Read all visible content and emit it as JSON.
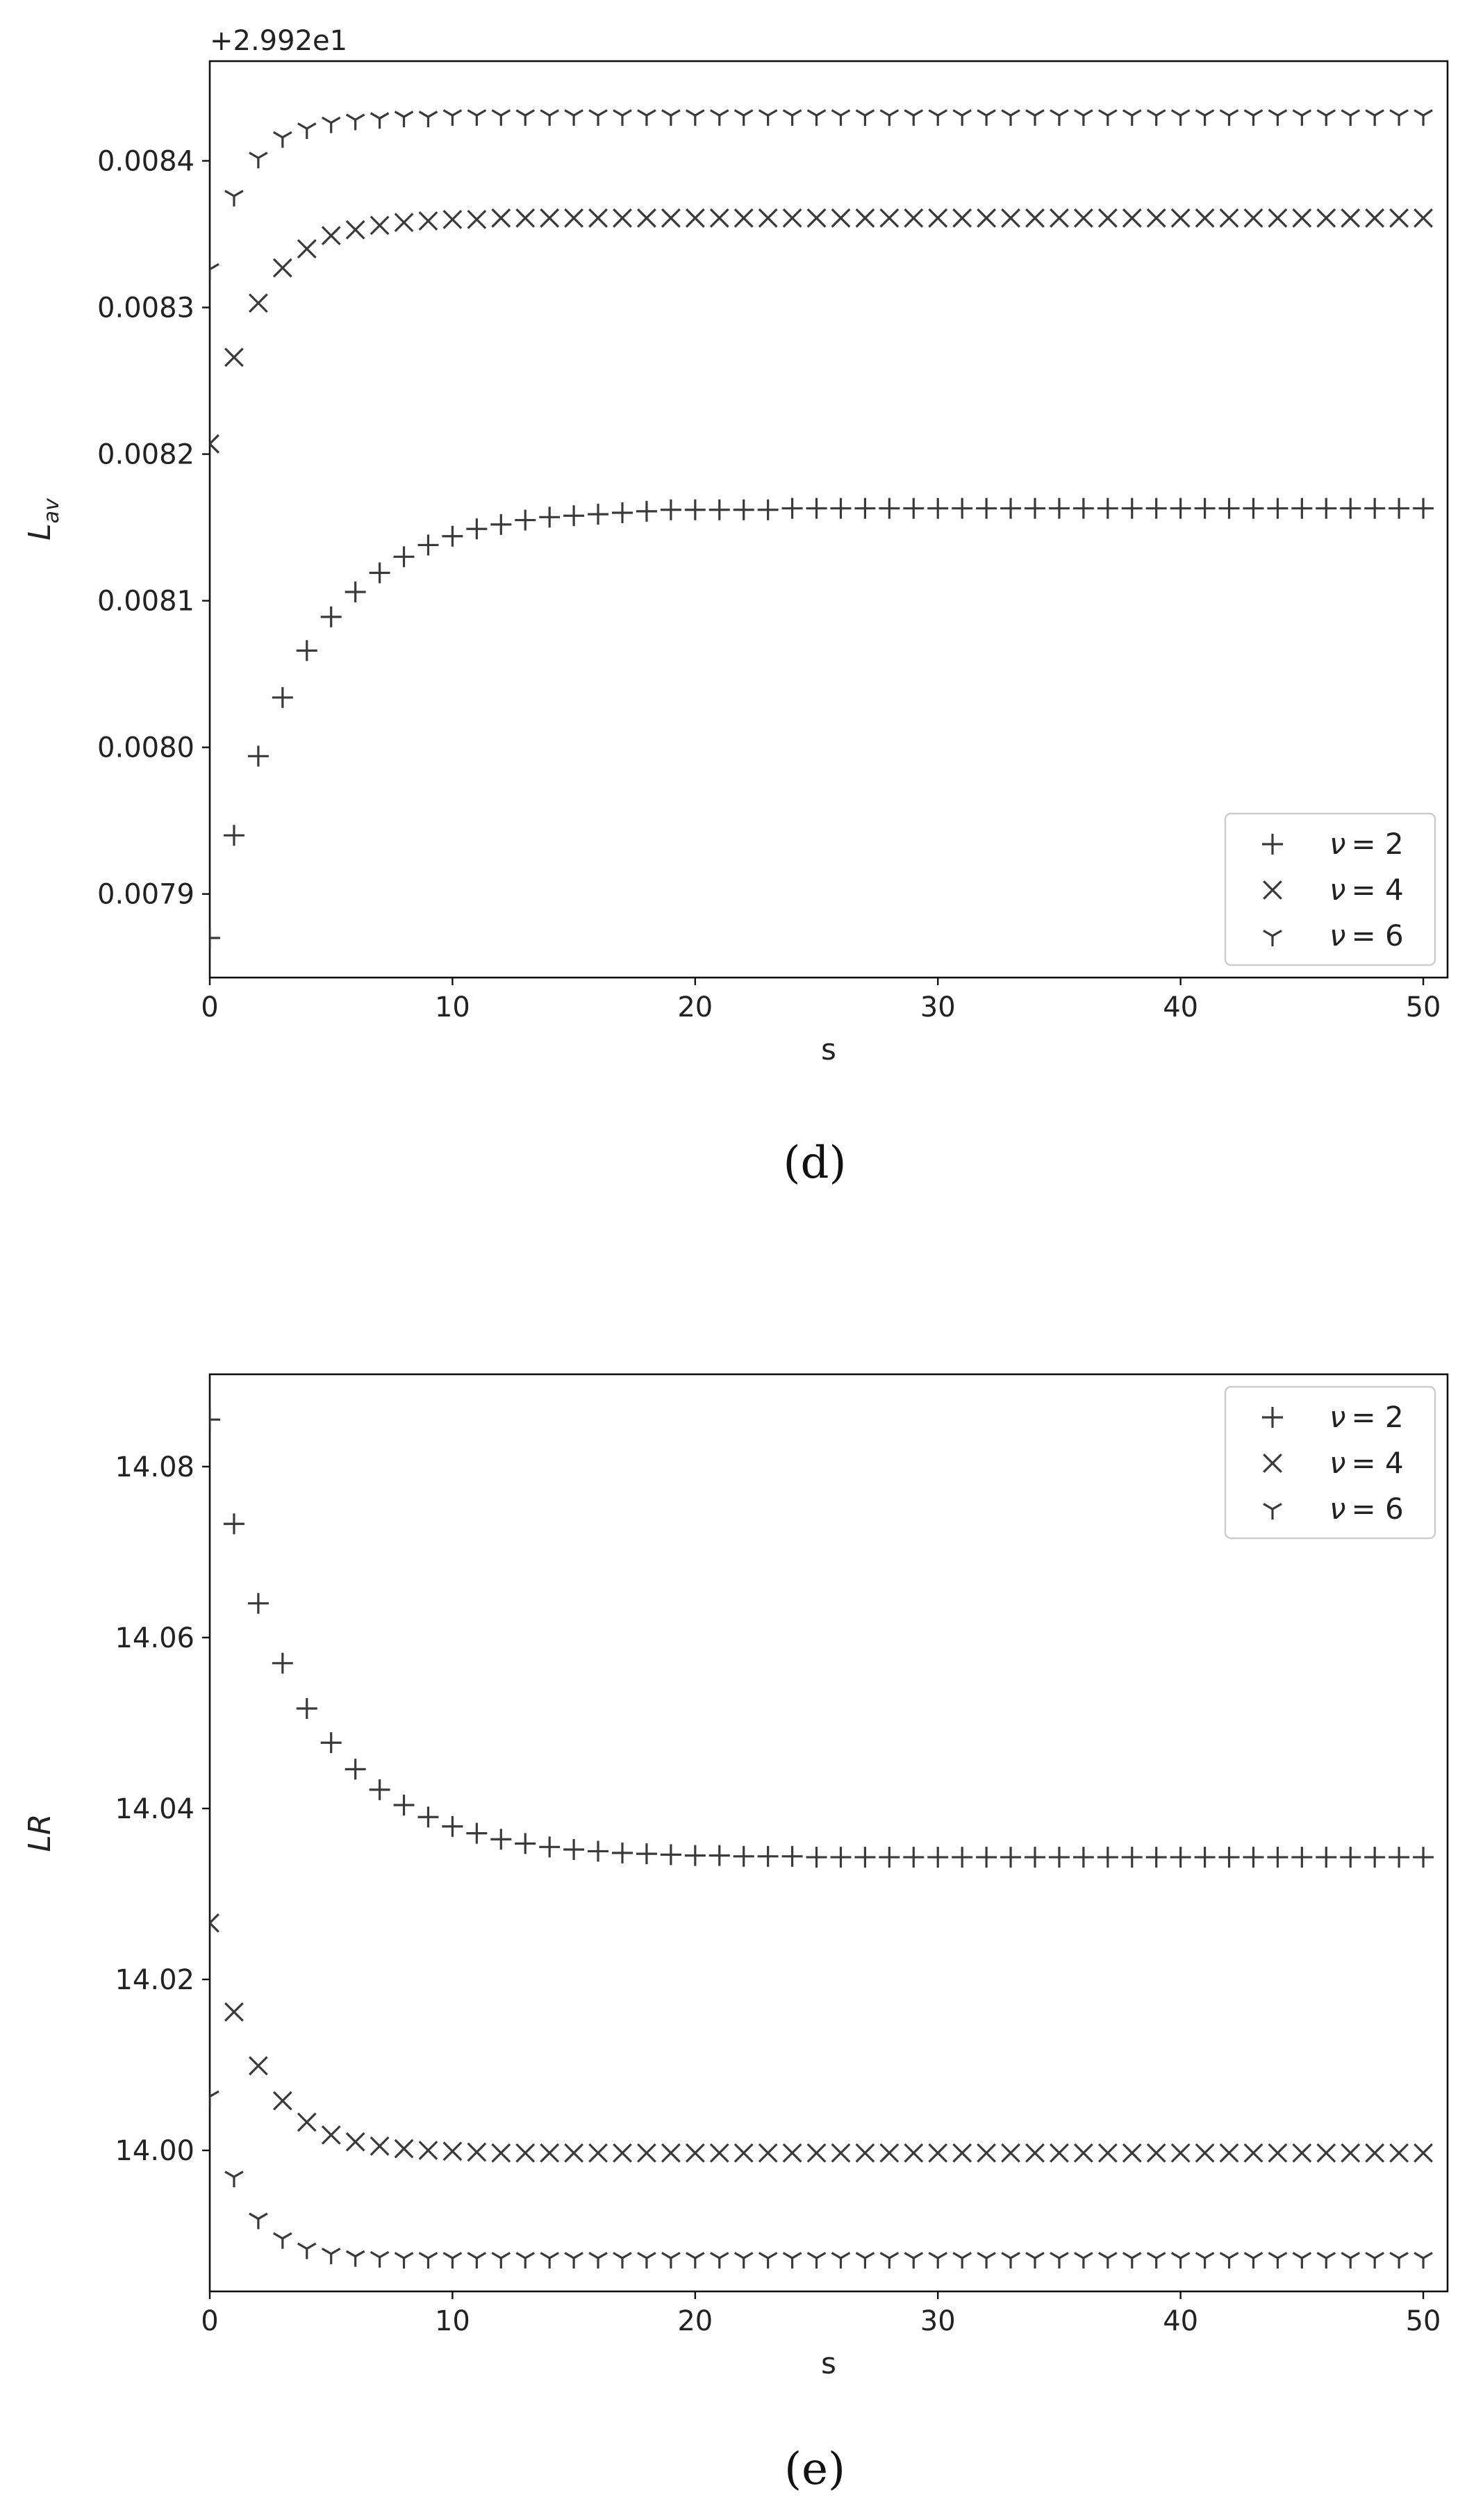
{
  "chart_data": [
    {
      "type": "scatter",
      "panel_label": "(d)",
      "offset_text": "+2.992e1",
      "xlabel": "s",
      "ylabel": "L",
      "ylabel_subscript": "av",
      "xlim": [
        0,
        51
      ],
      "ylim": [
        0.007843,
        0.008468
      ],
      "x_ticks": [
        0,
        10,
        20,
        30,
        40,
        50
      ],
      "x_tick_labels": [
        "0",
        "10",
        "20",
        "30",
        "40",
        "50"
      ],
      "y_ticks": [
        0.0079,
        0.008,
        0.0081,
        0.0082,
        0.0083,
        0.0084
      ],
      "y_tick_labels": [
        "0.0079",
        "0.0080",
        "0.0081",
        "0.0082",
        "0.0083",
        "0.0084"
      ],
      "legend_position": "lower-right",
      "grid": false,
      "series": [
        {
          "name": "ν = 2",
          "name_prefix": "ν",
          "name_value": "= 2",
          "marker": "plus",
          "x": [
            0,
            1,
            2,
            3,
            4,
            5,
            6,
            7,
            8,
            9,
            10,
            11,
            12,
            13,
            14,
            15,
            16,
            17,
            18,
            19,
            20,
            21,
            22,
            23,
            24,
            25,
            26,
            27,
            28,
            29,
            30,
            31,
            32,
            33,
            34,
            35,
            36,
            37,
            38,
            39,
            40,
            41,
            42,
            43,
            44,
            45,
            46,
            47,
            48,
            49,
            50
          ],
          "y": [
            0.00787,
            0.00794,
            0.007994,
            0.008034,
            0.008066,
            0.008089,
            0.008106,
            0.008119,
            0.00813,
            0.008138,
            0.008144,
            0.008149,
            0.008152,
            0.008155,
            0.008157,
            0.008158,
            0.008159,
            0.00816,
            0.008161,
            0.008162,
            0.008162,
            0.008162,
            0.008162,
            0.008162,
            0.008163,
            0.008163,
            0.008163,
            0.008163,
            0.008163,
            0.008163,
            0.008163,
            0.008163,
            0.008163,
            0.008163,
            0.008163,
            0.008163,
            0.008163,
            0.008163,
            0.008163,
            0.008163,
            0.008163,
            0.008163,
            0.008163,
            0.008163,
            0.008163,
            0.008163,
            0.008163,
            0.008163,
            0.008163,
            0.008163,
            0.008163
          ]
        },
        {
          "name": "ν = 4",
          "name_prefix": "ν",
          "name_value": "= 4",
          "marker": "x",
          "x": [
            0,
            1,
            2,
            3,
            4,
            5,
            6,
            7,
            8,
            9,
            10,
            11,
            12,
            13,
            14,
            15,
            16,
            17,
            18,
            19,
            20,
            21,
            22,
            23,
            24,
            25,
            26,
            27,
            28,
            29,
            30,
            31,
            32,
            33,
            34,
            35,
            36,
            37,
            38,
            39,
            40,
            41,
            42,
            43,
            44,
            45,
            46,
            47,
            48,
            49,
            50
          ],
          "y": [
            0.008207,
            0.008266,
            0.008303,
            0.008327,
            0.00834,
            0.008349,
            0.008353,
            0.008356,
            0.008358,
            0.008359,
            0.00836,
            0.00836,
            0.008361,
            0.008361,
            0.008361,
            0.008361,
            0.008361,
            0.008361,
            0.008361,
            0.008361,
            0.008361,
            0.008361,
            0.008361,
            0.008361,
            0.008361,
            0.008361,
            0.008361,
            0.008361,
            0.008361,
            0.008361,
            0.008361,
            0.008361,
            0.008361,
            0.008361,
            0.008361,
            0.008361,
            0.008361,
            0.008361,
            0.008361,
            0.008361,
            0.008361,
            0.008361,
            0.008361,
            0.008361,
            0.008361,
            0.008361,
            0.008361,
            0.008361,
            0.008361,
            0.008361,
            0.008361
          ]
        },
        {
          "name": "ν = 6",
          "name_prefix": "ν",
          "name_value": "= 6",
          "marker": "tri_down",
          "x": [
            0,
            1,
            2,
            3,
            4,
            5,
            6,
            7,
            8,
            9,
            10,
            11,
            12,
            13,
            14,
            15,
            16,
            17,
            18,
            19,
            20,
            21,
            22,
            23,
            24,
            25,
            26,
            27,
            28,
            29,
            30,
            31,
            32,
            33,
            34,
            35,
            36,
            37,
            38,
            39,
            40,
            41,
            42,
            43,
            44,
            45,
            46,
            47,
            48,
            49,
            50
          ],
          "y": [
            0.008326,
            0.008376,
            0.008402,
            0.008416,
            0.008422,
            0.008426,
            0.008428,
            0.008429,
            0.00843,
            0.00843,
            0.008431,
            0.008431,
            0.008431,
            0.008431,
            0.008431,
            0.008431,
            0.008431,
            0.008431,
            0.008431,
            0.008431,
            0.008431,
            0.008431,
            0.008431,
            0.008431,
            0.008431,
            0.008431,
            0.008431,
            0.008431,
            0.008431,
            0.008431,
            0.008431,
            0.008431,
            0.008431,
            0.008431,
            0.008431,
            0.008431,
            0.008431,
            0.008431,
            0.008431,
            0.008431,
            0.008431,
            0.008431,
            0.008431,
            0.008431,
            0.008431,
            0.008431,
            0.008431,
            0.008431,
            0.008431,
            0.008431,
            0.008431
          ]
        }
      ]
    },
    {
      "type": "scatter",
      "panel_label": "(e)",
      "offset_text": "",
      "xlabel": "s",
      "ylabel": "LR",
      "ylabel_subscript": "",
      "xlim": [
        0,
        51
      ],
      "ylim": [
        13.9835,
        14.0908
      ],
      "x_ticks": [
        0,
        10,
        20,
        30,
        40,
        50
      ],
      "x_tick_labels": [
        "0",
        "10",
        "20",
        "30",
        "40",
        "50"
      ],
      "y_ticks": [
        14.0,
        14.02,
        14.04,
        14.06,
        14.08
      ],
      "y_tick_labels": [
        "14.00",
        "14.02",
        "14.04",
        "14.06",
        "14.08"
      ],
      "legend_position": "upper-right",
      "grid": false,
      "series": [
        {
          "name": "ν = 2",
          "name_prefix": "ν",
          "name_value": "= 2",
          "marker": "plus",
          "x": [
            0,
            1,
            2,
            3,
            4,
            5,
            6,
            7,
            8,
            9,
            10,
            11,
            12,
            13,
            14,
            15,
            16,
            17,
            18,
            19,
            20,
            21,
            22,
            23,
            24,
            25,
            26,
            27,
            28,
            29,
            30,
            31,
            32,
            33,
            34,
            35,
            36,
            37,
            38,
            39,
            40,
            41,
            42,
            43,
            44,
            45,
            46,
            47,
            48,
            49,
            50
          ],
          "y": [
            14.0855,
            14.0733,
            14.064,
            14.057,
            14.0517,
            14.0477,
            14.0446,
            14.0422,
            14.0404,
            14.039,
            14.0379,
            14.0371,
            14.0364,
            14.0359,
            14.0355,
            14.0352,
            14.035,
            14.0348,
            14.0347,
            14.0346,
            14.0345,
            14.0345,
            14.0344,
            14.0344,
            14.0344,
            14.0343,
            14.0343,
            14.0343,
            14.0343,
            14.0343,
            14.0343,
            14.0343,
            14.0343,
            14.0343,
            14.0343,
            14.0343,
            14.0343,
            14.0343,
            14.0343,
            14.0343,
            14.0343,
            14.0343,
            14.0343,
            14.0343,
            14.0343,
            14.0343,
            14.0343,
            14.0343,
            14.0343,
            14.0343,
            14.0343
          ]
        },
        {
          "name": "ν = 4",
          "name_prefix": "ν",
          "name_value": "= 4",
          "marker": "x",
          "x": [
            0,
            1,
            2,
            3,
            4,
            5,
            6,
            7,
            8,
            9,
            10,
            11,
            12,
            13,
            14,
            15,
            16,
            17,
            18,
            19,
            20,
            21,
            22,
            23,
            24,
            25,
            26,
            27,
            28,
            29,
            30,
            31,
            32,
            33,
            34,
            35,
            36,
            37,
            38,
            39,
            40,
            41,
            42,
            43,
            44,
            45,
            46,
            47,
            48,
            49,
            50
          ],
          "y": [
            14.0266,
            14.0162,
            14.0099,
            14.0058,
            14.0033,
            14.0018,
            14.001,
            14.0005,
            14.0002,
            14.0,
            13.9999,
            13.9998,
            13.9997,
            13.9997,
            13.9997,
            13.9997,
            13.9997,
            13.9997,
            13.9997,
            13.9997,
            13.9997,
            13.9997,
            13.9997,
            13.9997,
            13.9997,
            13.9997,
            13.9997,
            13.9997,
            13.9997,
            13.9997,
            13.9997,
            13.9997,
            13.9997,
            13.9997,
            13.9997,
            13.9997,
            13.9997,
            13.9997,
            13.9997,
            13.9997,
            13.9997,
            13.9997,
            13.9997,
            13.9997,
            13.9997,
            13.9997,
            13.9997,
            13.9997,
            13.9997,
            13.9997,
            13.9997
          ]
        },
        {
          "name": "ν = 6",
          "name_prefix": "ν",
          "name_value": "= 6",
          "marker": "tri_down",
          "x": [
            0,
            1,
            2,
            3,
            4,
            5,
            6,
            7,
            8,
            9,
            10,
            11,
            12,
            13,
            14,
            15,
            16,
            17,
            18,
            19,
            20,
            21,
            22,
            23,
            24,
            25,
            26,
            27,
            28,
            29,
            30,
            31,
            32,
            33,
            34,
            35,
            36,
            37,
            38,
            39,
            40,
            41,
            42,
            43,
            44,
            45,
            46,
            47,
            48,
            49,
            50
          ],
          "y": [
            14.0063,
            13.9969,
            13.992,
            13.9897,
            13.9885,
            13.9879,
            13.9876,
            13.9875,
            13.9874,
            13.9874,
            13.9874,
            13.9874,
            13.9874,
            13.9874,
            13.9874,
            13.9874,
            13.9874,
            13.9874,
            13.9874,
            13.9874,
            13.9874,
            13.9874,
            13.9874,
            13.9874,
            13.9874,
            13.9874,
            13.9874,
            13.9874,
            13.9874,
            13.9874,
            13.9874,
            13.9874,
            13.9874,
            13.9874,
            13.9874,
            13.9874,
            13.9874,
            13.9874,
            13.9874,
            13.9874,
            13.9874,
            13.9874,
            13.9874,
            13.9874,
            13.9874,
            13.9874,
            13.9874,
            13.9874,
            13.9874,
            13.9874,
            13.9874
          ]
        }
      ]
    }
  ]
}
